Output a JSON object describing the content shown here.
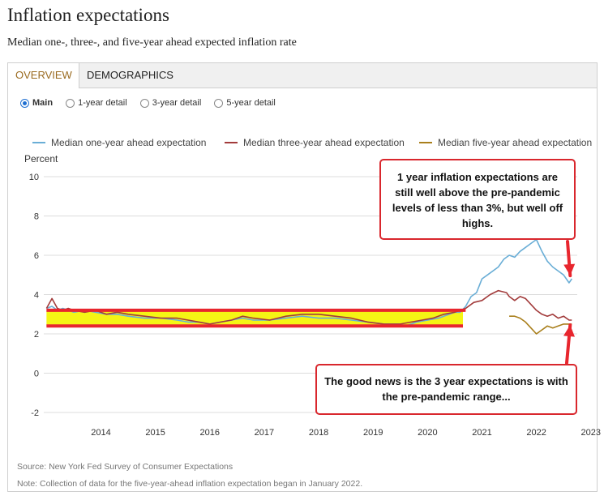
{
  "header": {
    "title": "Inflation expectations",
    "subtitle": "Median one-, three-, and five-year ahead expected inflation rate"
  },
  "tabs": [
    {
      "label": "OVERVIEW",
      "active": true
    },
    {
      "label": "DEMOGRAPHICS",
      "active": false
    }
  ],
  "radios": [
    {
      "label": "Main",
      "selected": true
    },
    {
      "label": "1-year detail",
      "selected": false
    },
    {
      "label": "3-year detail",
      "selected": false
    },
    {
      "label": "5-year detail",
      "selected": false
    }
  ],
  "annotations": {
    "callout_top": "1 year inflation expectations are still well above the pre-pandemic levels of less than 3%, but well off highs.",
    "callout_bottom": "The good news is the 3 year expectations is with the pre-pandemic range...",
    "band_range": [
      2.4,
      3.2
    ],
    "highlight_color": "#f5f514",
    "marker_color": "#e8262e"
  },
  "footer": {
    "source": "Source: New York Fed Survey of Consumer Expectations",
    "note": "Note: Collection of data for the five-year-ahead inflation expectation began in January 2022."
  },
  "chart_data": {
    "type": "line",
    "title": "Inflation expectations",
    "ylabel": "Percent",
    "ylim": [
      -2,
      10
    ],
    "yticks": [
      10,
      8,
      6,
      4,
      2,
      0,
      -2
    ],
    "xlim": [
      2013.45,
      2023.25
    ],
    "xticks": [
      2014,
      2015,
      2016,
      2017,
      2018,
      2019,
      2020,
      2021,
      2022,
      2023
    ],
    "legend_position": "top",
    "series": [
      {
        "name": "Median one-year ahead expectation",
        "color": "#6aaed6",
        "x": [
          2013.5,
          2013.6,
          2013.7,
          2013.8,
          2013.9,
          2014.0,
          2014.2,
          2014.4,
          2014.6,
          2014.8,
          2015.0,
          2015.3,
          2015.6,
          2015.9,
          2016.1,
          2016.3,
          2016.5,
          2016.7,
          2016.9,
          2017.1,
          2017.3,
          2017.6,
          2017.9,
          2018.2,
          2018.5,
          2018.8,
          2019.1,
          2019.4,
          2019.7,
          2020.0,
          2020.1,
          2020.2,
          2020.3,
          2020.5,
          2020.7,
          2020.9,
          2021.0,
          2021.1,
          2021.2,
          2021.3,
          2021.4,
          2021.5,
          2021.6,
          2021.8,
          2021.9,
          2022.0,
          2022.1,
          2022.2,
          2022.3,
          2022.4,
          2022.5,
          2022.6,
          2022.7,
          2022.8,
          2022.9,
          2023.0,
          2023.1,
          2023.15
        ],
        "values": [
          3.3,
          3.4,
          3.2,
          3.3,
          3.2,
          3.1,
          3.2,
          3.1,
          3.0,
          3.0,
          2.9,
          2.8,
          2.8,
          2.7,
          2.6,
          2.6,
          2.5,
          2.6,
          2.7,
          2.8,
          2.7,
          2.7,
          2.8,
          2.9,
          2.8,
          2.8,
          2.7,
          2.6,
          2.5,
          2.5,
          2.4,
          2.5,
          2.6,
          2.7,
          2.8,
          3.0,
          3.1,
          3.1,
          3.4,
          3.9,
          4.1,
          4.8,
          5.0,
          5.4,
          5.8,
          6.0,
          5.9,
          6.2,
          6.4,
          6.6,
          6.8,
          6.2,
          5.7,
          5.4,
          5.2,
          5.0,
          4.6,
          4.8
        ]
      },
      {
        "name": "Median three-year ahead expectation",
        "color": "#a23b3b",
        "x": [
          2013.5,
          2013.6,
          2013.7,
          2013.8,
          2013.9,
          2014.0,
          2014.2,
          2014.4,
          2014.6,
          2014.8,
          2015.0,
          2015.3,
          2015.6,
          2015.9,
          2016.1,
          2016.3,
          2016.5,
          2016.7,
          2016.9,
          2017.1,
          2017.3,
          2017.6,
          2017.9,
          2018.2,
          2018.5,
          2018.8,
          2019.1,
          2019.4,
          2019.7,
          2020.0,
          2020.2,
          2020.4,
          2020.6,
          2020.8,
          2021.0,
          2021.1,
          2021.2,
          2021.35,
          2021.5,
          2021.65,
          2021.8,
          2021.95,
          2022.0,
          2022.1,
          2022.2,
          2022.3,
          2022.5,
          2022.6,
          2022.7,
          2022.8,
          2022.9,
          2023.0,
          2023.1,
          2023.15
        ],
        "values": [
          3.3,
          3.8,
          3.3,
          3.2,
          3.3,
          3.2,
          3.1,
          3.2,
          3.0,
          3.1,
          3.0,
          2.9,
          2.8,
          2.8,
          2.7,
          2.6,
          2.5,
          2.6,
          2.7,
          2.9,
          2.8,
          2.7,
          2.9,
          3.0,
          3.0,
          2.9,
          2.8,
          2.6,
          2.5,
          2.5,
          2.6,
          2.7,
          2.8,
          3.0,
          3.1,
          3.2,
          3.3,
          3.6,
          3.7,
          4.0,
          4.2,
          4.1,
          3.9,
          3.7,
          3.9,
          3.8,
          3.2,
          3.0,
          2.9,
          3.0,
          2.8,
          2.9,
          2.7,
          2.7
        ]
      },
      {
        "name": "Median five-year ahead expectation",
        "color": "#a97f1c",
        "x": [
          2022.0,
          2022.1,
          2022.2,
          2022.3,
          2022.4,
          2022.5,
          2022.6,
          2022.7,
          2022.8,
          2022.9,
          2023.0,
          2023.1,
          2023.15
        ],
        "values": [
          2.9,
          2.9,
          2.8,
          2.6,
          2.3,
          2.0,
          2.2,
          2.4,
          2.3,
          2.4,
          2.5,
          2.5,
          2.5
        ]
      }
    ]
  }
}
